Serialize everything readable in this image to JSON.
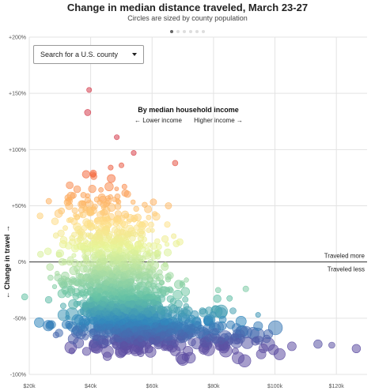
{
  "header": {
    "title": "Change in median distance traveled, March 23-27",
    "subtitle": "Circles are sized by county population",
    "pager": {
      "count": 6,
      "active": 0
    }
  },
  "search": {
    "placeholder": "Search for a U.S. county"
  },
  "annotation": {
    "title": "By median household income",
    "lower": "← Lower income",
    "higher": "Higher income →"
  },
  "colors": {
    "grid": "#e3e3e3",
    "zero_line": "#333333",
    "palette": [
      "#d53e4f",
      "#f46d43",
      "#fdae61",
      "#fee08b",
      "#e6f598",
      "#abdda4",
      "#66c2a5",
      "#3288bd",
      "#5e4fa2"
    ]
  },
  "chart_data": {
    "type": "scatter",
    "title": "Change in median distance traveled, March 23-27",
    "subtitle": "Circles are sized by county population",
    "xlabel": "",
    "ylabel": "← Change in travel →",
    "xlim": [
      20000,
      130000
    ],
    "ylim": [
      -100,
      200
    ],
    "x_ticks": [
      20000,
      40000,
      60000,
      80000,
      100000,
      120000
    ],
    "x_tick_labels": [
      "$20k",
      "$40k",
      "$60k",
      "$80k",
      "$100k",
      "$120k"
    ],
    "y_ticks": [
      200,
      150,
      100,
      50,
      0,
      -50,
      -100
    ],
    "y_tick_labels": [
      "+200%",
      "+150%",
      "+100%",
      "+50%",
      "0%",
      "-50%",
      "-100%"
    ],
    "reference_line": {
      "y": 0,
      "above_label": "Traveled more",
      "below_label": "Traveled less"
    },
    "grid": true,
    "color_encoding": "change in travel (red = increase, purple = decrease)",
    "size_encoding": "county population",
    "notable_points": [
      {
        "x": 39500,
        "y": 153,
        "size": 1
      },
      {
        "x": 39000,
        "y": 133,
        "size": 1.5
      },
      {
        "x": 48500,
        "y": 111,
        "size": 1
      },
      {
        "x": 54000,
        "y": 97,
        "size": 1
      },
      {
        "x": 67500,
        "y": 88,
        "size": 1.2
      },
      {
        "x": 38500,
        "y": 78,
        "size": 2
      },
      {
        "x": 41000,
        "y": 76,
        "size": 1.5
      },
      {
        "x": 50000,
        "y": 86,
        "size": 1
      },
      {
        "x": 46500,
        "y": 84,
        "size": 1
      },
      {
        "x": 40500,
        "y": 65,
        "size": 2
      },
      {
        "x": 46000,
        "y": 67,
        "size": 2.4
      },
      {
        "x": 51000,
        "y": 67,
        "size": 1
      },
      {
        "x": 23500,
        "y": 41,
        "size": 1.4
      },
      {
        "x": 39000,
        "y": 55,
        "size": 1.3
      },
      {
        "x": 94500,
        "y": -47,
        "size": 1
      },
      {
        "x": 18500,
        "y": -31,
        "size": 1.5
      },
      {
        "x": 81500,
        "y": -25,
        "size": 1.2
      },
      {
        "x": 90500,
        "y": -24,
        "size": 1.3
      },
      {
        "x": 126500,
        "y": -77,
        "size": 2.4
      },
      {
        "x": 114000,
        "y": -73,
        "size": 2.4
      },
      {
        "x": 118500,
        "y": -74,
        "size": 1.5
      },
      {
        "x": 105500,
        "y": -75,
        "size": 2.5
      },
      {
        "x": 99500,
        "y": -78,
        "size": 3
      },
      {
        "x": 101500,
        "y": -82,
        "size": 3.5
      },
      {
        "x": 36000,
        "y": -72,
        "size": 3.2
      },
      {
        "x": 33500,
        "y": -76,
        "size": 3.7
      },
      {
        "x": 59500,
        "y": -80,
        "size": 3.3
      },
      {
        "x": 70000,
        "y": -87,
        "size": 3.5
      },
      {
        "x": 91000,
        "y": -72,
        "size": 3.6
      },
      {
        "x": 84000,
        "y": -79,
        "size": 4
      },
      {
        "x": 77500,
        "y": -71,
        "size": 3.2
      },
      {
        "x": 95500,
        "y": -82,
        "size": 2.8
      }
    ],
    "clusters": [
      {
        "cx": 47000,
        "cy": 15,
        "sx": 8000,
        "sy": 18,
        "n": 340,
        "size": 1.2
      },
      {
        "cx": 48000,
        "cy": -18,
        "sx": 8500,
        "sy": 14,
        "n": 360,
        "size": 1.4
      },
      {
        "cx": 52000,
        "cy": -45,
        "sx": 9500,
        "sy": 12,
        "n": 320,
        "size": 1.8
      },
      {
        "cx": 57000,
        "cy": -62,
        "sx": 12000,
        "sy": 9,
        "n": 260,
        "size": 2.4
      },
      {
        "cx": 42000,
        "cy": 45,
        "sx": 6000,
        "sy": 14,
        "n": 70,
        "size": 1.3
      },
      {
        "cx": 74000,
        "cy": -58,
        "sx": 9000,
        "sy": 12,
        "n": 70,
        "size": 2.2
      },
      {
        "cx": 86000,
        "cy": -70,
        "sx": 8000,
        "sy": 8,
        "n": 40,
        "size": 2.8
      }
    ]
  }
}
